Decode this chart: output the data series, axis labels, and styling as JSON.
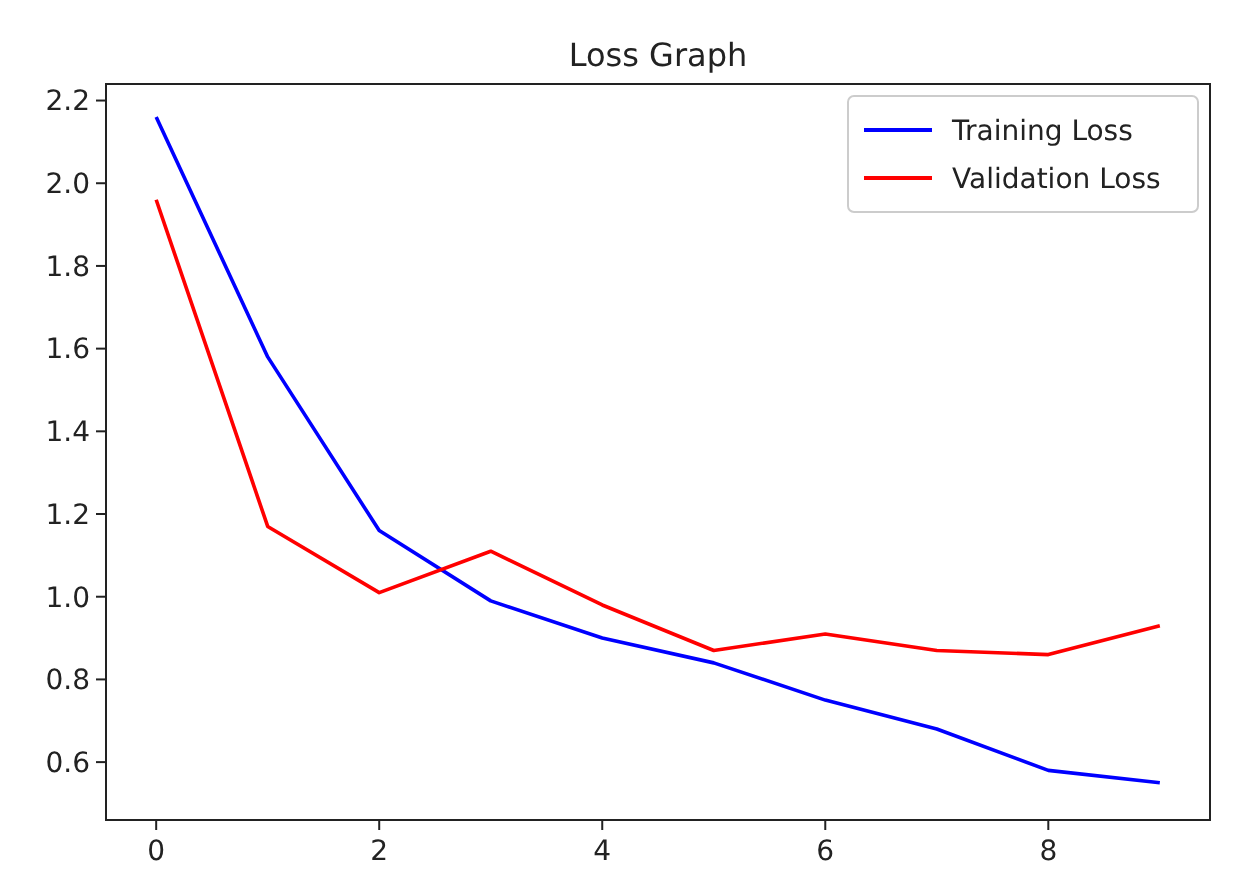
{
  "chart_data": {
    "type": "line",
    "title": "Loss Graph",
    "x": [
      0,
      1,
      2,
      3,
      4,
      5,
      6,
      7,
      8,
      9
    ],
    "series": [
      {
        "name": "Training Loss",
        "color": "#0000ff",
        "values": [
          2.16,
          1.58,
          1.16,
          0.99,
          0.9,
          0.84,
          0.75,
          0.68,
          0.58,
          0.55
        ]
      },
      {
        "name": "Validation Loss",
        "color": "#ff0000",
        "values": [
          1.96,
          1.17,
          1.01,
          1.11,
          0.98,
          0.87,
          0.91,
          0.87,
          0.86,
          0.93
        ]
      }
    ],
    "xlim": [
      -0.45,
      9.45
    ],
    "xticks": [
      0,
      2,
      4,
      6,
      8
    ],
    "ylim": [
      0.46,
      2.24
    ],
    "yticks": [
      {
        "value": 0.6,
        "label": "0.6"
      },
      {
        "value": 0.8,
        "label": "0.8"
      },
      {
        "value": 1.0,
        "label": "1.0"
      },
      {
        "value": 1.2,
        "label": "1.2"
      },
      {
        "value": 1.4,
        "label": "1.4"
      },
      {
        "value": 1.6,
        "label": "1.6"
      },
      {
        "value": 1.8,
        "label": "1.8"
      },
      {
        "value": 2.0,
        "label": "2.0"
      },
      {
        "value": 2.2,
        "label": "2.2"
      }
    ],
    "legend": "top right",
    "grid": false
  }
}
